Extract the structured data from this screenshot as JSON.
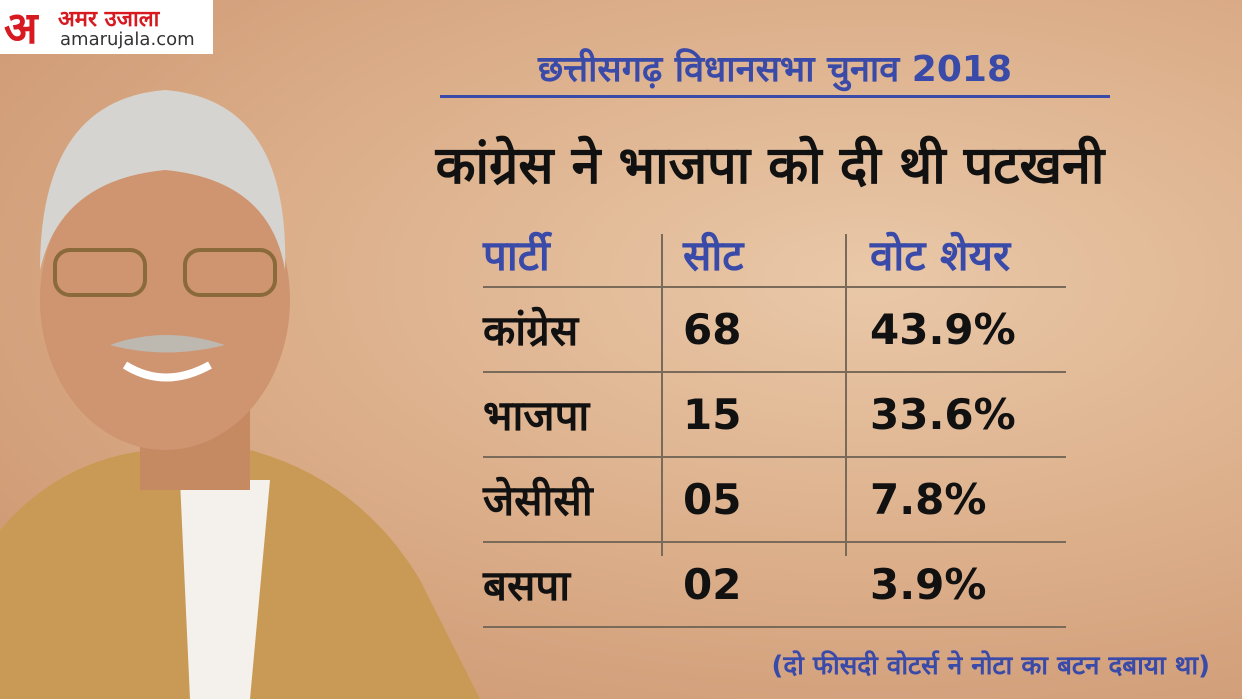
{
  "logo": {
    "mark": "अ",
    "name": "अमर उजाला",
    "url": "amarujala.com"
  },
  "header": {
    "subtitle": "छत्तीसगढ़ विधानसभा चुनाव 2018",
    "title": "कांग्रेस ने भाजपा को दी थी पटखनी"
  },
  "table": {
    "columns": [
      "पार्टी",
      "सीट",
      "वोट शेयर"
    ],
    "rows": [
      [
        "कांग्रेस",
        "68",
        "43.9%"
      ],
      [
        "भाजपा",
        "15",
        "33.6%"
      ],
      [
        "जेसीसी",
        "05",
        "7.8%"
      ],
      [
        "बसपा",
        "02",
        "3.9%"
      ]
    ]
  },
  "footnote": "(दो फीसदी वोटर्स ने नोटा का बटन दबाया था)"
}
